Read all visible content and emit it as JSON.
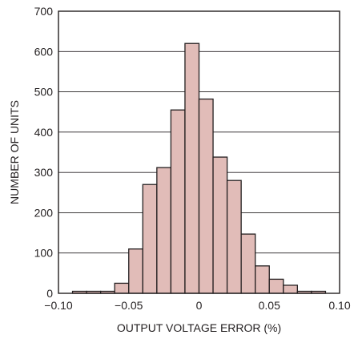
{
  "chart_data": {
    "type": "bar",
    "xlabel": "OUTPUT VOLTAGE ERROR (%)",
    "ylabel": "NUMBER OF UNITS",
    "xlim": [
      -0.1,
      0.1
    ],
    "ylim": [
      0,
      700
    ],
    "grid": true,
    "bar_color": "#e1bcb8",
    "line_color": "#231f20",
    "bin_width": 0.01,
    "x_ticks": [
      {
        "value": -0.1,
        "label": "−0.10"
      },
      {
        "value": -0.05,
        "label": "−0.05"
      },
      {
        "value": 0,
        "label": "0"
      },
      {
        "value": 0.05,
        "label": "0.05"
      },
      {
        "value": 0.1,
        "label": "0.10"
      }
    ],
    "y_ticks": [
      {
        "value": 0,
        "label": "0"
      },
      {
        "value": 100,
        "label": "100"
      },
      {
        "value": 200,
        "label": "200"
      },
      {
        "value": 300,
        "label": "300"
      },
      {
        "value": 400,
        "label": "400"
      },
      {
        "value": 500,
        "label": "500"
      },
      {
        "value": 600,
        "label": "600"
      },
      {
        "value": 700,
        "label": "700"
      }
    ],
    "bins": [
      {
        "x_start": -0.09,
        "x_end": -0.08,
        "value": 5
      },
      {
        "x_start": -0.08,
        "x_end": -0.07,
        "value": 5
      },
      {
        "x_start": -0.07,
        "x_end": -0.06,
        "value": 5
      },
      {
        "x_start": -0.06,
        "x_end": -0.05,
        "value": 25
      },
      {
        "x_start": -0.05,
        "x_end": -0.04,
        "value": 110
      },
      {
        "x_start": -0.04,
        "x_end": -0.03,
        "value": 270
      },
      {
        "x_start": -0.03,
        "x_end": -0.02,
        "value": 312
      },
      {
        "x_start": -0.02,
        "x_end": -0.01,
        "value": 455
      },
      {
        "x_start": -0.01,
        "x_end": 0.0,
        "value": 620
      },
      {
        "x_start": 0.0,
        "x_end": 0.01,
        "value": 482
      },
      {
        "x_start": 0.01,
        "x_end": 0.02,
        "value": 338
      },
      {
        "x_start": 0.02,
        "x_end": 0.03,
        "value": 280
      },
      {
        "x_start": 0.03,
        "x_end": 0.04,
        "value": 147
      },
      {
        "x_start": 0.04,
        "x_end": 0.05,
        "value": 68
      },
      {
        "x_start": 0.05,
        "x_end": 0.06,
        "value": 35
      },
      {
        "x_start": 0.06,
        "x_end": 0.07,
        "value": 20
      },
      {
        "x_start": 0.07,
        "x_end": 0.08,
        "value": 5
      },
      {
        "x_start": 0.08,
        "x_end": 0.09,
        "value": 5
      }
    ]
  }
}
